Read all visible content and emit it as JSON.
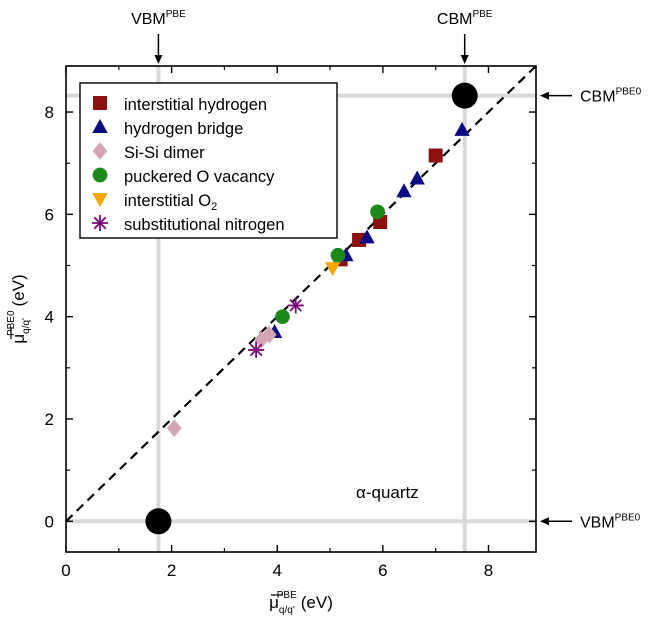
{
  "chart_data": {
    "type": "scatter",
    "xlabel_main": "μ",
    "xlabel_sub": "q/q'",
    "xlabel_sup": "PBE",
    "xlabel_unit": "(eV)",
    "ylabel_main": "μ",
    "ylabel_sub": "q/q'",
    "ylabel_sup": "PBE0",
    "ylabel_unit": "(eV)",
    "xlim": [
      0,
      8.9
    ],
    "ylim": [
      -0.6,
      8.9
    ],
    "xticks": [
      0,
      2,
      4,
      6,
      8
    ],
    "yticks": [
      0,
      2,
      4,
      6,
      8
    ],
    "annotation": "α-quartz",
    "band_edges": {
      "vbm_pbe": 1.75,
      "cbm_pbe": 7.55,
      "vbm_pbe0": 0.0,
      "cbm_pbe0": 8.32
    },
    "edge_labels": {
      "vbm_pbe": {
        "main": "VBM",
        "sup": "PBE"
      },
      "cbm_pbe": {
        "main": "CBM",
        "sup": "PBE"
      },
      "vbm_pbe0": {
        "main": "VBM",
        "sup": "PBE0"
      },
      "cbm_pbe0": {
        "main": "CBM",
        "sup": "PBE0"
      }
    },
    "fit_line": {
      "x": [
        0,
        8.9
      ],
      "y": [
        0,
        8.9
      ]
    },
    "series": [
      {
        "name": "interstitial hydrogen",
        "marker": "square",
        "color": "#8b1010",
        "points": [
          [
            5.2,
            5.12
          ],
          [
            5.55,
            5.5
          ],
          [
            5.95,
            5.85
          ],
          [
            7.0,
            7.15
          ]
        ]
      },
      {
        "name": "hydrogen bridge",
        "marker": "triangle-up",
        "color": "#0c0c82",
        "points": [
          [
            3.95,
            3.7
          ],
          [
            5.3,
            5.2
          ],
          [
            5.7,
            5.55
          ],
          [
            6.4,
            6.45
          ],
          [
            6.65,
            6.7
          ],
          [
            7.5,
            7.65
          ]
        ]
      },
      {
        "name": "Si-Si dimer",
        "marker": "diamond",
        "color": "#d4a5b4",
        "points": [
          [
            2.05,
            1.82
          ],
          [
            3.7,
            3.55
          ],
          [
            3.85,
            3.65
          ]
        ]
      },
      {
        "name": "puckered O vacancy",
        "marker": "circle",
        "color": "#1b8a1b",
        "points": [
          [
            4.1,
            4.0
          ],
          [
            5.15,
            5.2
          ],
          [
            5.9,
            6.05
          ]
        ]
      },
      {
        "name": "interstitial O2",
        "name_main": "interstitial O",
        "name_sub": "2",
        "marker": "triangle-down",
        "color": "#f5a700",
        "points": [
          [
            5.05,
            4.95
          ]
        ]
      },
      {
        "name": "substitutional nitrogen",
        "marker": "asterisk",
        "color": "#7a0a7a",
        "points": [
          [
            3.6,
            3.35
          ],
          [
            4.35,
            4.22
          ]
        ]
      }
    ]
  }
}
